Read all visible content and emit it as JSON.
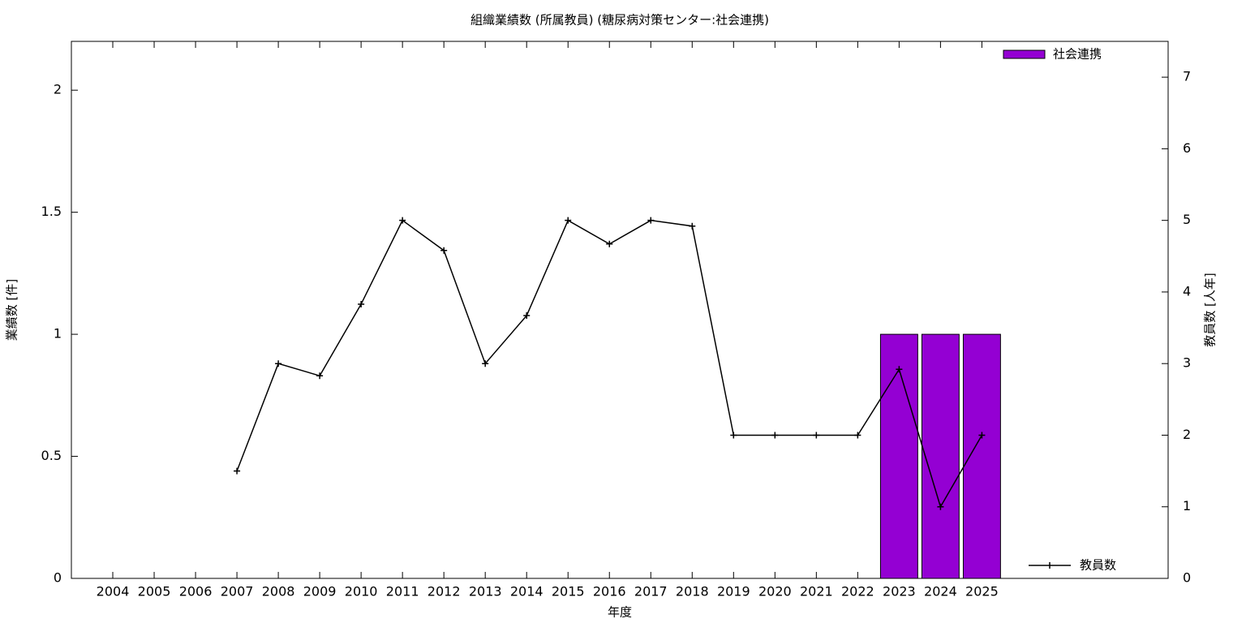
{
  "chart_data": {
    "type": "bar",
    "title": "組織業績数 (所属教員) (糖尿病対策センター:社会連携)",
    "x_label": "年度",
    "y_label": "業績数 [件]",
    "y2_label": "教員数 [人年]",
    "categories": [
      "2004",
      "2005",
      "2006",
      "2007",
      "2008",
      "2009",
      "2010",
      "2011",
      "2012",
      "2013",
      "2014",
      "2015",
      "2016",
      "2017",
      "2018",
      "2019",
      "2020",
      "2021",
      "2022",
      "2023",
      "2024",
      "2025"
    ],
    "series": [
      {
        "name": "社会連携",
        "type": "bar",
        "color": "#9400d3",
        "values": [
          null,
          null,
          null,
          null,
          null,
          null,
          null,
          null,
          null,
          null,
          null,
          null,
          null,
          null,
          null,
          null,
          null,
          null,
          null,
          1,
          1,
          1
        ]
      },
      {
        "name": "教員数",
        "type": "line",
        "axis": "y2",
        "color": "#000000",
        "values": [
          null,
          null,
          null,
          1.5,
          3.0,
          2.83,
          3.83,
          5.0,
          4.58,
          3.0,
          3.67,
          5.0,
          4.67,
          5.0,
          4.92,
          2.0,
          2.0,
          2.0,
          2.0,
          2.92,
          1.0,
          2.0
        ]
      }
    ],
    "ylim": [
      0,
      2.2
    ],
    "yticks": [
      0,
      0.5,
      1,
      1.5,
      2
    ],
    "y2lim": [
      0,
      7.5
    ],
    "y2ticks": [
      0,
      1,
      2,
      3,
      4,
      5,
      6,
      7
    ]
  }
}
